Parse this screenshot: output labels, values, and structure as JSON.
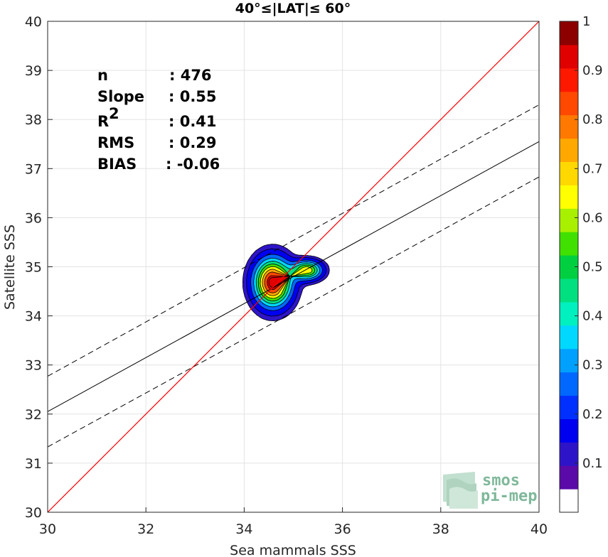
{
  "chart_data": {
    "type": "contour",
    "title": "40°≤|LAT|≤ 60°",
    "xlabel": "Sea mammals SSS",
    "ylabel": "Satellite SSS",
    "xlim": [
      30,
      40
    ],
    "ylim": [
      30,
      40
    ],
    "xticks": [
      "30",
      "32",
      "34",
      "36",
      "38",
      "40"
    ],
    "yticks": [
      "30",
      "31",
      "32",
      "33",
      "34",
      "35",
      "36",
      "37",
      "38",
      "39",
      "40"
    ],
    "grid": true,
    "stats": [
      {
        "label": "n",
        "value": ": 476"
      },
      {
        "label": "Slope",
        "value": ": 0.55"
      },
      {
        "label": "R",
        "sup": "2",
        "value": ": 0.41"
      },
      {
        "label": "RMS",
        "value": ": 0.29"
      },
      {
        "label": "BIAS",
        "value": ": -0.06"
      }
    ],
    "reference_line": {
      "name": "1:1",
      "color": "#ff0000",
      "x": [
        30,
        40
      ],
      "y": [
        30,
        40
      ]
    },
    "fit_line": {
      "x": [
        30,
        40
      ],
      "y": [
        32.05,
        37.55
      ]
    },
    "confidence_upper": {
      "x": [
        30,
        40
      ],
      "y": [
        32.77,
        38.3
      ]
    },
    "confidence_lower": {
      "x": [
        30,
        40
      ],
      "y": [
        31.33,
        36.83
      ]
    },
    "density": {
      "peaks": [
        {
          "x": 34.58,
          "y": 34.68,
          "sx": 0.25,
          "sy": 0.32,
          "amp": 1.0
        },
        {
          "x": 35.28,
          "y": 34.93,
          "sx": 0.2,
          "sy": 0.13,
          "amp": 0.68
        }
      ],
      "levels": [
        0.05,
        0.1,
        0.2,
        0.3,
        0.4,
        0.5,
        0.6,
        0.7,
        0.8,
        0.9
      ]
    },
    "colorbar": {
      "min": 0,
      "max": 1,
      "ticks": [
        "0.1",
        "0.2",
        "0.3",
        "0.4",
        "0.5",
        "0.6",
        "0.7",
        "0.8",
        "0.9",
        "1"
      ],
      "colors": [
        "#ffffff",
        "#5a0aa8",
        "#2e14c8",
        "#0000f0",
        "#0030ff",
        "#0068ff",
        "#00a0ff",
        "#00d8ff",
        "#00f0c0",
        "#00e080",
        "#00d040",
        "#40e000",
        "#a8f000",
        "#ffff00",
        "#ffd800",
        "#ffa800",
        "#ff7800",
        "#ff4800",
        "#ff1800",
        "#e00000",
        "#8c0000"
      ]
    },
    "logo": {
      "line1": "smos",
      "line2": "pi-mep"
    }
  }
}
